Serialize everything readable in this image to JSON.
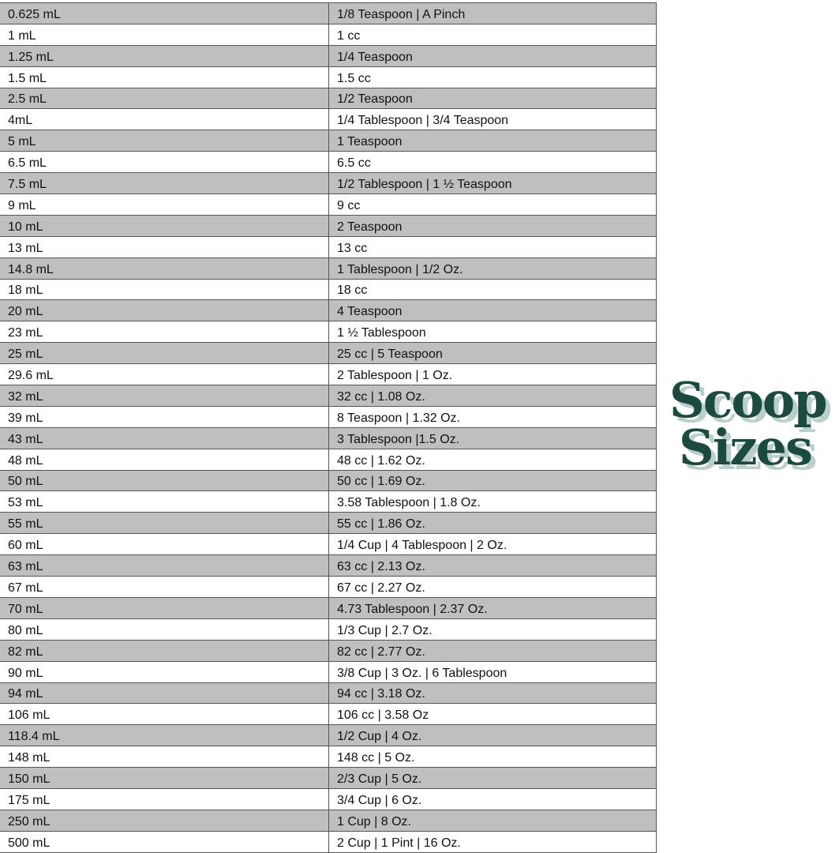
{
  "table": {
    "rows": [
      [
        "0.625 mL",
        "1/8 Teaspoon | A Pinch"
      ],
      [
        "1 mL",
        "1 cc"
      ],
      [
        "1.25 mL",
        "1/4 Teaspoon"
      ],
      [
        "1.5 mL",
        "1.5 cc"
      ],
      [
        "2.5 mL",
        "1/2 Teaspoon"
      ],
      [
        "4mL",
        "1/4 Tablespoon | 3/4 Teaspoon"
      ],
      [
        "5 mL",
        "1 Teaspoon"
      ],
      [
        "6.5 mL",
        "6.5 cc"
      ],
      [
        "7.5 mL",
        "1/2 Tablespoon | 1 ½ Teaspoon"
      ],
      [
        "9 mL",
        "9 cc"
      ],
      [
        "10 mL",
        "2 Teaspoon"
      ],
      [
        "13 mL",
        "13 cc"
      ],
      [
        "14.8 mL",
        "1 Tablespoon | 1/2 Oz."
      ],
      [
        "18 mL",
        "18 cc"
      ],
      [
        "20 mL",
        "4 Teaspoon"
      ],
      [
        "23 mL",
        "1 ½ Tablespoon"
      ],
      [
        "25 mL",
        "25 cc | 5 Teaspoon"
      ],
      [
        "29.6 mL",
        "2 Tablespoon | 1 Oz."
      ],
      [
        "32 mL",
        "32 cc | 1.08 Oz."
      ],
      [
        "39 mL",
        "8 Teaspoon | 1.32 Oz."
      ],
      [
        "43 mL",
        "3 Tablespoon |1.5 Oz."
      ],
      [
        "48 mL",
        "48 cc | 1.62 Oz."
      ],
      [
        "50 mL",
        "50 cc | 1.69 Oz."
      ],
      [
        "53 mL",
        "3.58 Tablespoon | 1.8 Oz."
      ],
      [
        "55 mL",
        "55 cc | 1.86 Oz."
      ],
      [
        "60 mL",
        "1/4 Cup | 4 Tablespoon | 2 Oz."
      ],
      [
        "63 mL",
        "63 cc | 2.13 Oz."
      ],
      [
        "67 mL",
        "67 cc | 2.27 Oz."
      ],
      [
        "70 mL",
        "4.73 Tablespoon | 2.37 Oz."
      ],
      [
        "80 mL",
        "1/3 Cup | 2.7 Oz."
      ],
      [
        "82 mL",
        "82 cc | 2.77 Oz."
      ],
      [
        "90 mL",
        "3/8 Cup | 3 Oz. | 6 Tablespoon"
      ],
      [
        "94 mL",
        "94 cc | 3.18 Oz."
      ],
      [
        "106 mL",
        "106 cc | 3.58 Oz"
      ],
      [
        "118.4 mL",
        "1/2 Cup | 4 Oz."
      ],
      [
        "148 mL",
        "148 cc | 5 Oz."
      ],
      [
        "150 mL",
        "2/3 Cup | 5 Oz."
      ],
      [
        "175 mL",
        "3/4 Cup | 6 Oz."
      ],
      [
        "250 mL",
        "1 Cup | 8 Oz."
      ],
      [
        "500 mL",
        "2 Cup | 1 Pint | 16 Oz."
      ]
    ]
  },
  "logo": {
    "line1": "Scoop",
    "line2": "Sizes",
    "color": "#1d4a40",
    "shadow_color": "#b9cfcc"
  }
}
